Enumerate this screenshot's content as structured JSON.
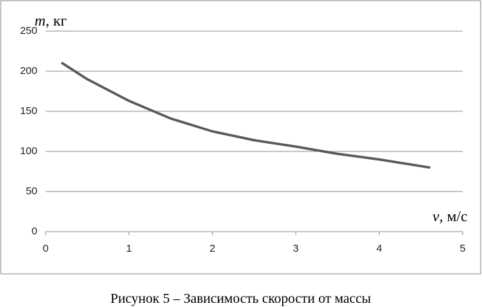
{
  "chart_data": {
    "type": "line",
    "ylabel_symbol": "m",
    "ylabel_unit": ", кг",
    "xlabel_symbol": "v",
    "xlabel_unit": ", м/с",
    "caption": "Рисунок 5 – Зависимость скорости от массы",
    "x": [
      0.2,
      0.5,
      1,
      1.5,
      2,
      2.5,
      3,
      3.5,
      4,
      4.6
    ],
    "series": [
      {
        "color": "#595959",
        "values": [
          210,
          190,
          163,
          141,
          125,
          114,
          106,
          97,
          90,
          80
        ]
      }
    ],
    "xlim": [
      0,
      5
    ],
    "xticks": [
      0,
      1,
      2,
      3,
      4,
      5
    ],
    "ylim": [
      0,
      250
    ],
    "yticks": [
      0,
      50,
      100,
      150,
      200,
      250
    ],
    "grid": true
  }
}
